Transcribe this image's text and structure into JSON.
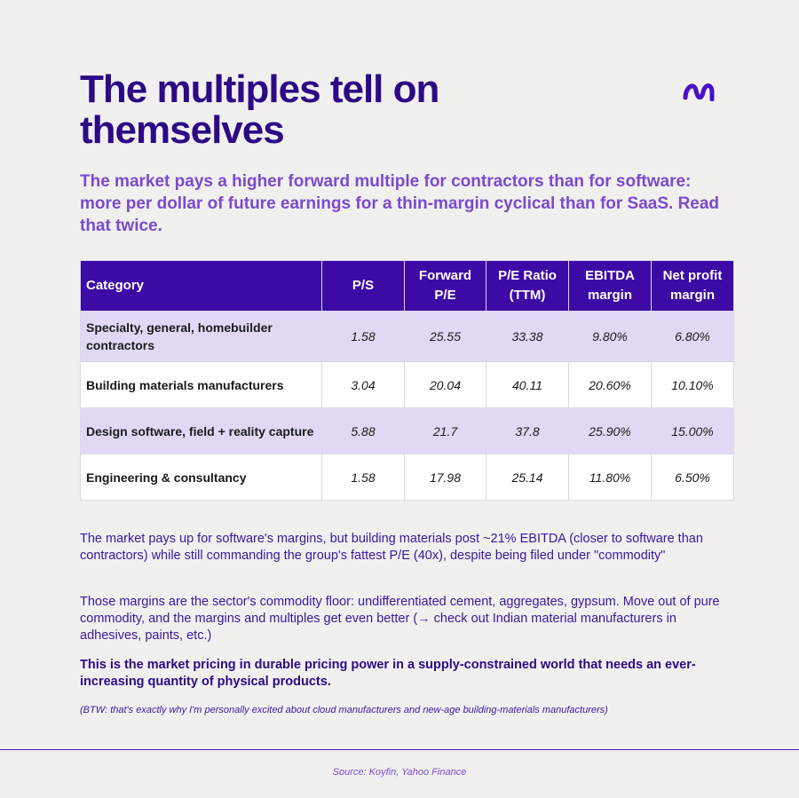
{
  "title": "The multiples tell on themselves",
  "logo_icon": "brand-logo-icon",
  "subtitle": "The market pays a higher forward multiple for contractors than for software: more per dollar of future earnings for a thin-margin cyclical than for SaaS. Read that twice.",
  "table": {
    "headers": [
      "Category",
      "P/S",
      "Forward P/E",
      "P/E Ratio (TTM)",
      "EBITDA margin",
      "Net profit margin"
    ],
    "rows": [
      [
        "Specialty, general, homebuilder contractors",
        "1.58",
        "25.55",
        "33.38",
        "9.80%",
        "6.80%"
      ],
      [
        "Building materials manufacturers",
        "3.04",
        "20.04",
        "40.11",
        "20.60%",
        "10.10%"
      ],
      [
        "Design software, field + reality capture",
        "5.88",
        "21.7",
        "37.8",
        "25.90%",
        "15.00%"
      ],
      [
        "Engineering & consultancy",
        "1.58",
        "17.98",
        "25.14",
        "11.80%",
        "6.50%"
      ]
    ]
  },
  "paragraphs": {
    "p1": "The market pays up for software's margins, but building materials post ~21% EBITDA (closer to software than contractors) while still commanding the group's fattest P/E (40x), despite being filed under \"commodity\"",
    "p2": "Those margins are the sector's commodity floor: undifferentiated cement, aggregates, gypsum. Move out of pure commodity, and the margins and multiples get even better (→ check out Indian material manufacturers in adhesives, paints, etc.)",
    "p3": "This is the market pricing in durable pricing power in a supply-constrained world that needs an ever-increasing quantity of physical products.",
    "p4": "(BTW: that's exactly why I'm personally excited about cloud manufacturers and new-age building-materials manufacturers)"
  },
  "source": "Source: Koyfin, Yahoo Finance",
  "colors": {
    "primary": "#2c0a86",
    "header_bg": "#3d0aa6",
    "row_shade": "#e2d8f6",
    "accent": "#7a4ad0",
    "background": "#f1f0ef"
  }
}
